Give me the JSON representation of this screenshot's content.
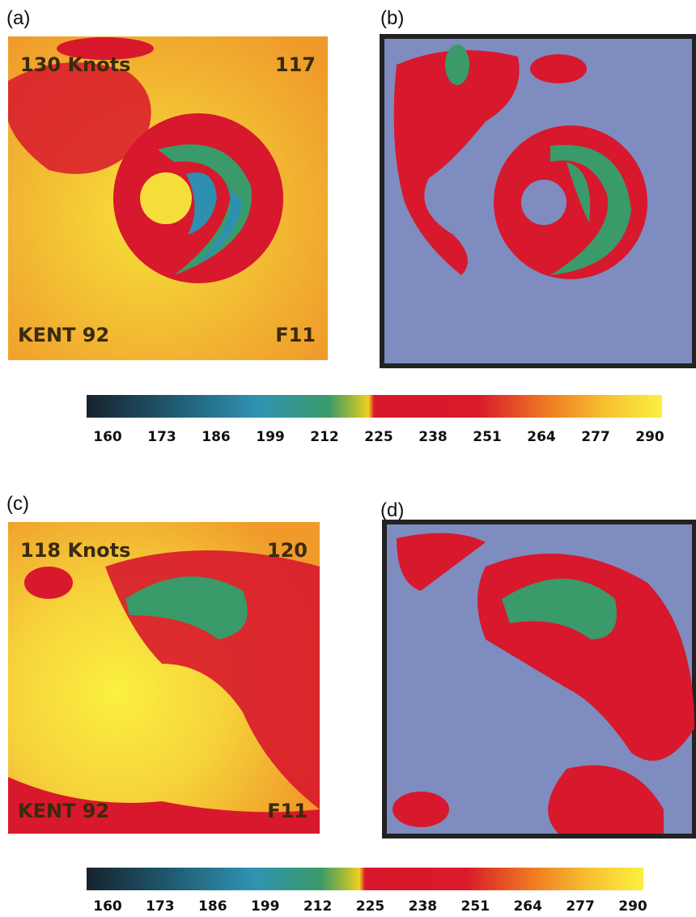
{
  "panels": [
    {
      "label": "(a)",
      "overlay": {
        "top_left": "130 Knots",
        "top_right": "117",
        "bottom_left": "KENT 92",
        "bottom_right": "F11"
      }
    },
    {
      "label": "(b)"
    },
    {
      "label": "(c)",
      "overlay": {
        "top_left": "118 Knots",
        "top_right": "120",
        "bottom_left": "KENT 92",
        "bottom_right": "F11"
      }
    },
    {
      "label": "(d)"
    }
  ],
  "colorbars": [
    {
      "ticks": [
        160,
        173,
        186,
        199,
        212,
        225,
        238,
        251,
        264,
        277,
        290
      ]
    },
    {
      "ticks": [
        160,
        173,
        186,
        199,
        212,
        225,
        238,
        251,
        264,
        277,
        290
      ]
    }
  ]
}
